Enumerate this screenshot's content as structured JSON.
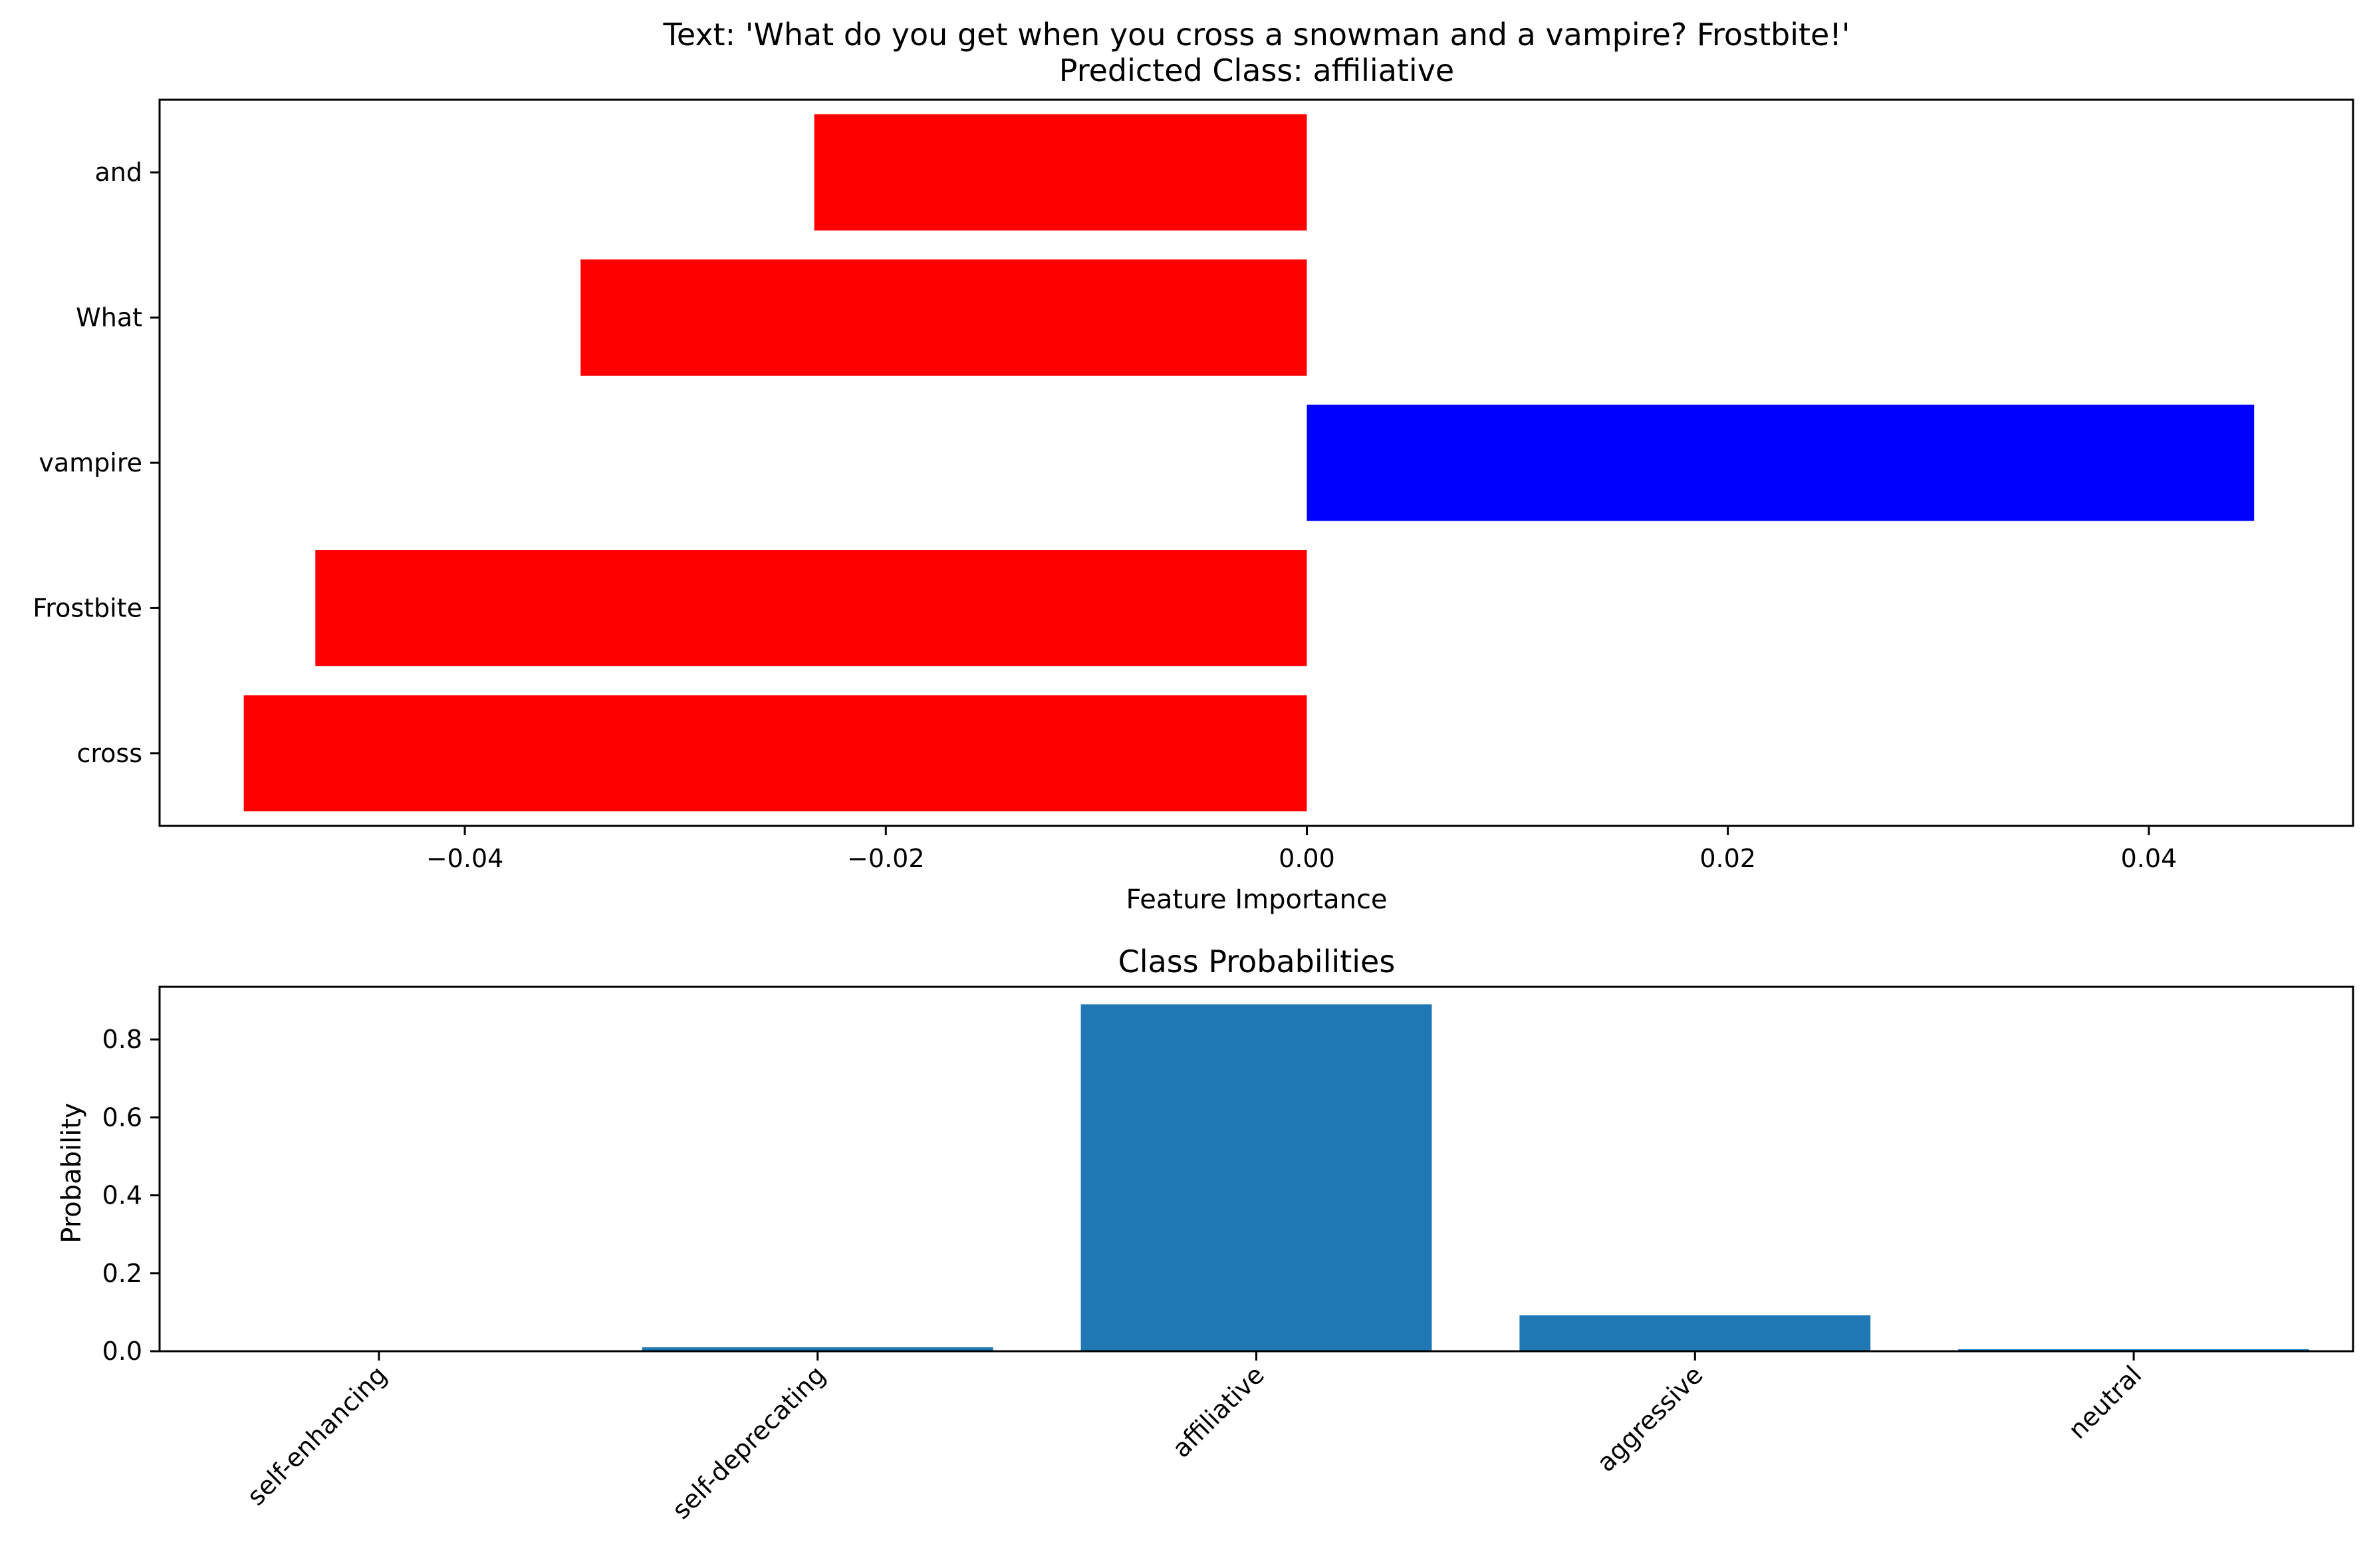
{
  "chart_data": [
    {
      "type": "bar",
      "orientation": "horizontal",
      "title": "Text: 'What do you get when you cross a snowman and a vampire? Frostbite!'",
      "subtitle": "Predicted Class: affiliative",
      "xlabel": "Feature Importance",
      "ylabel": "",
      "categories": [
        "and",
        "What",
        "vampire",
        "Frostbite",
        "cross"
      ],
      "values": [
        -0.0234,
        -0.0345,
        0.045,
        -0.0471,
        -0.0505
      ],
      "bar_colors": [
        "#ff0000",
        "#ff0000",
        "#0000ff",
        "#ff0000",
        "#ff0000"
      ],
      "xlim": [
        -0.0545,
        0.0497
      ],
      "xticks": [
        -0.04,
        -0.02,
        0.0,
        0.02,
        0.04
      ],
      "xtick_labels": [
        "−0.04",
        "−0.02",
        "0.00",
        "0.02",
        "0.04"
      ],
      "grid": false
    },
    {
      "type": "bar",
      "orientation": "vertical",
      "title": "Class Probabilities",
      "xlabel": "",
      "ylabel": "Probability",
      "categories": [
        "self-enhancing",
        "self-deprecating",
        "affiliative",
        "aggressive",
        "neutral"
      ],
      "values": [
        0.001,
        0.01,
        0.89,
        0.092,
        0.005
      ],
      "bar_color": "#1f77b4",
      "ylim": [
        0,
        0.935
      ],
      "yticks": [
        0.0,
        0.2,
        0.4,
        0.6,
        0.8
      ],
      "ytick_labels": [
        "0.0",
        "0.2",
        "0.4",
        "0.6",
        "0.8"
      ],
      "tick_rotation": 45,
      "grid": false
    }
  ]
}
